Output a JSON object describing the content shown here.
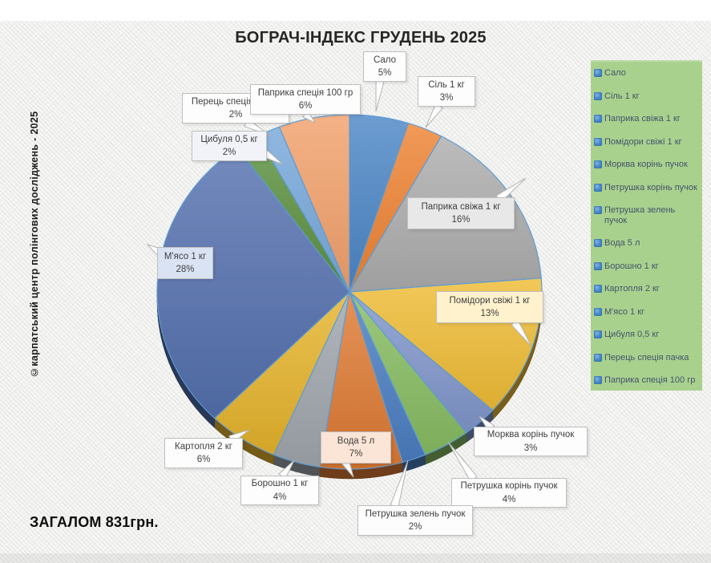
{
  "title": "БОГРАЧ-ІНДЕКС ГРУДЕНЬ 2025",
  "watermark": "©карпатський центр полінгових досліджень - 2025",
  "total_label": "ЗАГАЛОМ 831грн.",
  "chart_data": {
    "type": "pie",
    "title": "БОГРАЧ-ІНДЕКС ГРУДЕНЬ 2025",
    "style": "3d-pie-with-callouts",
    "start_angle_deg": 0,
    "direction": "clockwise",
    "legend_position": "right",
    "legend_bg": "#a9d18e",
    "legend_marker_color": "#3e7ec1",
    "total_sum_label": "ЗАГАЛОМ 831грн.",
    "slices": [
      {
        "label": "Сало",
        "value": 5,
        "pct_label": "5%",
        "color": "#4c86c6",
        "callout_bg": "#fdfdfd"
      },
      {
        "label": "Сіль 1 кг",
        "value": 3,
        "pct_label": "3%",
        "color": "#ee8333",
        "callout_bg": "#fdfdfd"
      },
      {
        "label": "Паприка свіжа 1 кг",
        "value": 16,
        "pct_label": "16%",
        "color": "#adadad",
        "callout_bg": "#e9e8e8"
      },
      {
        "label": "Помідори свіжі 1 кг",
        "value": 13,
        "pct_label": "13%",
        "color": "#efbc35",
        "callout_bg": "#fff2cc"
      },
      {
        "label": "Морква корінь пучок",
        "value": 3,
        "pct_label": "3%",
        "color": "#8096cb",
        "callout_bg": "#fdfdfd"
      },
      {
        "label": "Петрушка корінь пучок",
        "value": 4,
        "pct_label": "4%",
        "color": "#87bc62",
        "callout_bg": "#fdfdfd"
      },
      {
        "label": "Петрушка зелень пучок",
        "value": 2,
        "pct_label": "2%",
        "color": "#4b7ec2",
        "callout_bg": "#fdfdfd"
      },
      {
        "label": "Вода 5 л",
        "value": 7,
        "pct_label": "7%",
        "color": "#de7a33",
        "callout_bg": "#fbe5d6"
      },
      {
        "label": "Борошно 1 кг",
        "value": 4,
        "pct_label": "4%",
        "color": "#a0a6ad",
        "callout_bg": "#fdfdfd"
      },
      {
        "label": "Картопля 2 кг",
        "value": 6,
        "pct_label": "6%",
        "color": "#e5b32c",
        "callout_bg": "#fdfdfd"
      },
      {
        "label": "М'ясо 1 кг",
        "value": 28,
        "pct_label": "28%",
        "color": "#5470ae",
        "callout_bg": "#dae3f3"
      },
      {
        "label": "Цибуля 0,5 кг",
        "value": 2,
        "pct_label": "2%",
        "color": "#5c9140",
        "callout_bg": "#f2f3f8"
      },
      {
        "label": "Перець спеція пачка",
        "value": 2,
        "pct_label": "2%",
        "color": "#78a8db",
        "callout_bg": "#fdfdfd"
      },
      {
        "label": "Паприка спеція 100 гр",
        "value": 6,
        "pct_label": "6%",
        "color": "#f2a16c",
        "callout_bg": "#fdfdfd"
      }
    ]
  }
}
